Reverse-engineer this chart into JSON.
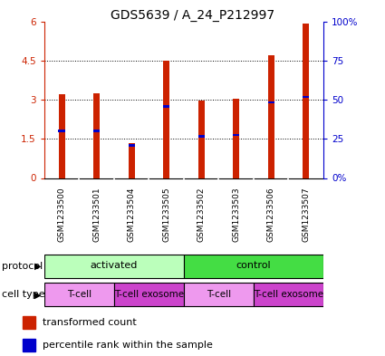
{
  "title": "GDS5639 / A_24_P212997",
  "samples": [
    "GSM1233500",
    "GSM1233501",
    "GSM1233504",
    "GSM1233505",
    "GSM1233502",
    "GSM1233503",
    "GSM1233506",
    "GSM1233507"
  ],
  "transformed_counts": [
    3.2,
    3.25,
    1.35,
    4.5,
    2.95,
    3.05,
    4.7,
    5.9
  ],
  "percentile_ranks": [
    1.8,
    1.8,
    1.25,
    2.75,
    1.6,
    1.65,
    2.9,
    3.1
  ],
  "ylim_left": [
    0,
    6
  ],
  "ylim_right": [
    0,
    100
  ],
  "yticks_left": [
    0,
    1.5,
    3.0,
    4.5,
    6.0
  ],
  "ytick_labels_left": [
    "0",
    "1.5",
    "3",
    "4.5",
    "6"
  ],
  "yticks_right": [
    0,
    25,
    50,
    75,
    100
  ],
  "ytick_labels_right": [
    "0%",
    "25",
    "50",
    "75",
    "100%"
  ],
  "bar_color": "#cc2200",
  "percentile_color": "#0000cc",
  "bg_color": "#ffffff",
  "protocol_groups": [
    {
      "label": "activated",
      "start": 0,
      "end": 4,
      "color": "#bbffbb"
    },
    {
      "label": "control",
      "start": 4,
      "end": 8,
      "color": "#44dd44"
    }
  ],
  "cell_type_groups": [
    {
      "label": "T-cell",
      "start": 0,
      "end": 2,
      "color": "#ee99ee"
    },
    {
      "label": "T-cell exosome",
      "start": 2,
      "end": 4,
      "color": "#cc44cc"
    },
    {
      "label": "T-cell",
      "start": 4,
      "end": 6,
      "color": "#ee99ee"
    },
    {
      "label": "T-cell exosome",
      "start": 6,
      "end": 8,
      "color": "#cc44cc"
    }
  ],
  "legend_items": [
    {
      "label": "transformed count",
      "color": "#cc2200"
    },
    {
      "label": "percentile rank within the sample",
      "color": "#0000cc"
    }
  ],
  "bar_width": 0.18,
  "title_fontsize": 10,
  "tick_fontsize": 7.5,
  "label_fontsize": 8,
  "sample_fontsize": 6.5,
  "row_label_fontsize": 8
}
